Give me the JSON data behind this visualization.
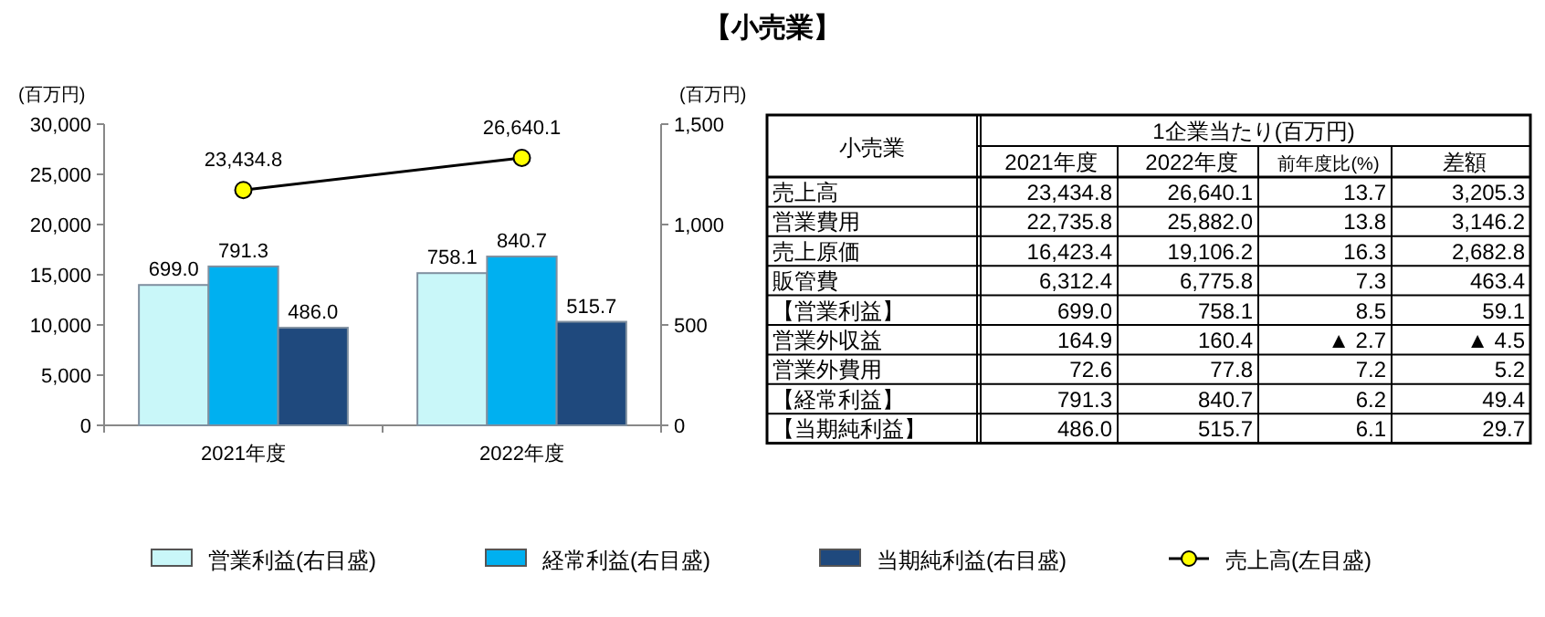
{
  "chart_data": [
    {
      "type": "bar",
      "title": "【小売業】",
      "ylabel": "(百万円)",
      "y2label": "(百万円)",
      "categories": [
        "2021年度",
        "2022年度"
      ],
      "series": [
        {
          "name": "営業利益(右目盛)",
          "color": "#c9f7f9",
          "axis": "y2",
          "values": [
            699.0,
            758.1
          ],
          "value_labels": [
            "699.0",
            "758.1"
          ]
        },
        {
          "name": "経常利益(右目盛)",
          "color": "#00b0f0",
          "axis": "y2",
          "values": [
            791.3,
            840.7
          ],
          "value_labels": [
            "791.3",
            "840.7"
          ]
        },
        {
          "name": "当期純利益(右目盛)",
          "color": "#1f497d",
          "axis": "y2",
          "values": [
            486.0,
            515.7
          ],
          "value_labels": [
            "486.0",
            "515.7"
          ]
        },
        {
          "name": "売上高(左目盛)",
          "type": "line",
          "color": "#ffff00",
          "marker": "circle",
          "values": [
            23434.8,
            26640.1
          ],
          "value_labels": [
            "23,434.8",
            "26,640.1"
          ]
        }
      ],
      "ylim": [
        0,
        30000
      ],
      "yticks": [
        0,
        {
          "value": 5000,
          "label": "5,000"
        },
        {
          "value": 10000,
          "label": "10,000"
        },
        {
          "value": 15000,
          "label": "15,000"
        },
        {
          "value": 20000,
          "label": "20,000"
        },
        {
          "value": 25000,
          "label": "25,000"
        },
        {
          "value": 30000,
          "label": "30,000"
        }
      ],
      "y2lim": [
        0,
        1500
      ],
      "y2ticks": [
        0,
        500,
        {
          "value": 1000,
          "label": "1,000"
        },
        {
          "value": 1500,
          "label": "1,500"
        }
      ],
      "legend": "bottom"
    },
    {
      "type": "other",
      "title": "1企業当たり(百万円)",
      "annotations": [
        "小売業"
      ],
      "categories": [
        "2021年度",
        "2022年度",
        "前年度比(%)",
        "差額"
      ],
      "y_categories": [
        "売上高",
        "営業費用",
        "売上原価",
        "販管費",
        "【営業利益】",
        "営業外収益",
        "営業外費用",
        "【経常利益】",
        "【当期純利益】"
      ],
      "cell_labels": [
        [
          "23,434.8",
          "26,640.1",
          "13.7",
          "3,205.3"
        ],
        [
          "22,735.8",
          "25,882.0",
          "13.8",
          "3,146.2"
        ],
        [
          "16,423.4",
          "19,106.2",
          "16.3",
          "2,682.8"
        ],
        [
          "6,312.4",
          "6,775.8",
          "7.3",
          "463.4"
        ],
        [
          "699.0",
          "758.1",
          "8.5",
          "59.1"
        ],
        [
          "164.9",
          "160.4",
          "▲ 2.7",
          "▲ 4.5"
        ],
        [
          "72.6",
          "77.8",
          "7.2",
          "5.2"
        ],
        [
          "791.3",
          "840.7",
          "6.2",
          "49.4"
        ],
        [
          "486.0",
          "515.7",
          "6.1",
          "29.7"
        ]
      ]
    }
  ]
}
